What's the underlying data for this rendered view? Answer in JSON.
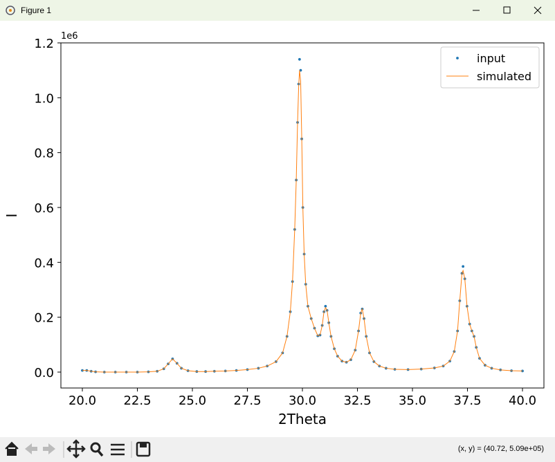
{
  "window_title": "Figure 1",
  "status_text": "(x, y) = (40.72, 5.09e+05)",
  "chart_data": {
    "type": "line",
    "x_label": "2Theta",
    "y_label": "I",
    "y_offset_label": "1e6",
    "xlim": [
      19.025,
      40.975
    ],
    "ylim": [
      -58000,
      1200000
    ],
    "xticks": [
      {
        "value": 20,
        "label": "20.0"
      },
      {
        "value": 22.5,
        "label": "22.5"
      },
      {
        "value": 25,
        "label": "25.0"
      },
      {
        "value": 27.5,
        "label": "27.5"
      },
      {
        "value": 30,
        "label": "30.0"
      },
      {
        "value": 32.5,
        "label": "32.5"
      },
      {
        "value": 35,
        "label": "35.0"
      },
      {
        "value": 37.5,
        "label": "37.5"
      },
      {
        "value": 40,
        "label": "40.0"
      }
    ],
    "yticks": [
      {
        "value": 0,
        "label": "0.0"
      },
      {
        "value": 200000,
        "label": "0.2"
      },
      {
        "value": 400000,
        "label": "0.4"
      },
      {
        "value": 600000,
        "label": "0.6"
      },
      {
        "value": 800000,
        "label": "0.8"
      },
      {
        "value": 1000000,
        "label": "1.0"
      },
      {
        "value": 1200000,
        "label": "1.2"
      }
    ],
    "legend": "upper right",
    "x": [
      20,
      20.2,
      20.4,
      20.6,
      21,
      21.5,
      22,
      22.5,
      23,
      23.4,
      23.7,
      23.9,
      24.1,
      24.3,
      24.5,
      24.8,
      25.2,
      25.6,
      26,
      26.5,
      27,
      27.5,
      28,
      28.4,
      28.8,
      29.1,
      29.3,
      29.45,
      29.55,
      29.65,
      29.72,
      29.78,
      29.83,
      29.87,
      29.92,
      29.97,
      30.02,
      30.08,
      30.15,
      30.25,
      30.4,
      30.55,
      30.7,
      30.8,
      30.9,
      30.98,
      31.05,
      31.12,
      31.2,
      31.3,
      31.45,
      31.6,
      31.8,
      32,
      32.2,
      32.4,
      32.55,
      32.65,
      32.72,
      32.8,
      32.9,
      33.05,
      33.25,
      33.5,
      33.8,
      34.2,
      34.8,
      35.4,
      36,
      36.4,
      36.7,
      36.9,
      37.05,
      37.15,
      37.25,
      37.3,
      37.38,
      37.48,
      37.6,
      37.7,
      37.8,
      37.9,
      38.05,
      38.3,
      38.6,
      39,
      39.5,
      40
    ],
    "series": [
      {
        "name": "input",
        "color": "#1f77b4",
        "mode": "markers",
        "values": [
          6000,
          6000,
          3000,
          1000,
          0,
          0,
          0,
          0,
          1000,
          3000,
          12000,
          30000,
          48000,
          32000,
          14000,
          5000,
          2000,
          2000,
          3000,
          4000,
          6000,
          9000,
          14000,
          22000,
          38000,
          70000,
          130000,
          220000,
          330000,
          520000,
          700000,
          910000,
          1050000,
          1140000,
          1100000,
          850000,
          600000,
          430000,
          320000,
          240000,
          195000,
          160000,
          132000,
          135000,
          170000,
          220000,
          240000,
          225000,
          180000,
          130000,
          85000,
          58000,
          40000,
          36000,
          45000,
          80000,
          150000,
          215000,
          230000,
          195000,
          130000,
          70000,
          38000,
          22000,
          14000,
          10000,
          9000,
          11000,
          15000,
          22000,
          40000,
          75000,
          150000,
          260000,
          360000,
          385000,
          340000,
          240000,
          175000,
          150000,
          130000,
          90000,
          50000,
          25000,
          14000,
          8000,
          5000,
          4000
        ]
      },
      {
        "name": "simulated",
        "color": "#ff7f0e",
        "mode": "line",
        "values": [
          6000,
          6000,
          3000,
          1000,
          0,
          0,
          0,
          0,
          1000,
          3000,
          12000,
          30000,
          48000,
          32000,
          14000,
          5000,
          2000,
          2000,
          3000,
          4000,
          6000,
          9000,
          14000,
          22000,
          38000,
          70000,
          130000,
          220000,
          330000,
          520000,
          700000,
          910000,
          1040000,
          1100000,
          1060000,
          850000,
          600000,
          430000,
          320000,
          240000,
          195000,
          160000,
          132000,
          135000,
          170000,
          220000,
          235000,
          225000,
          180000,
          130000,
          85000,
          58000,
          40000,
          36000,
          45000,
          80000,
          150000,
          215000,
          230000,
          195000,
          130000,
          70000,
          38000,
          22000,
          14000,
          10000,
          9000,
          11000,
          15000,
          22000,
          40000,
          75000,
          150000,
          260000,
          360000,
          370000,
          340000,
          240000,
          175000,
          150000,
          130000,
          90000,
          50000,
          25000,
          14000,
          8000,
          5000,
          4000
        ]
      }
    ]
  }
}
